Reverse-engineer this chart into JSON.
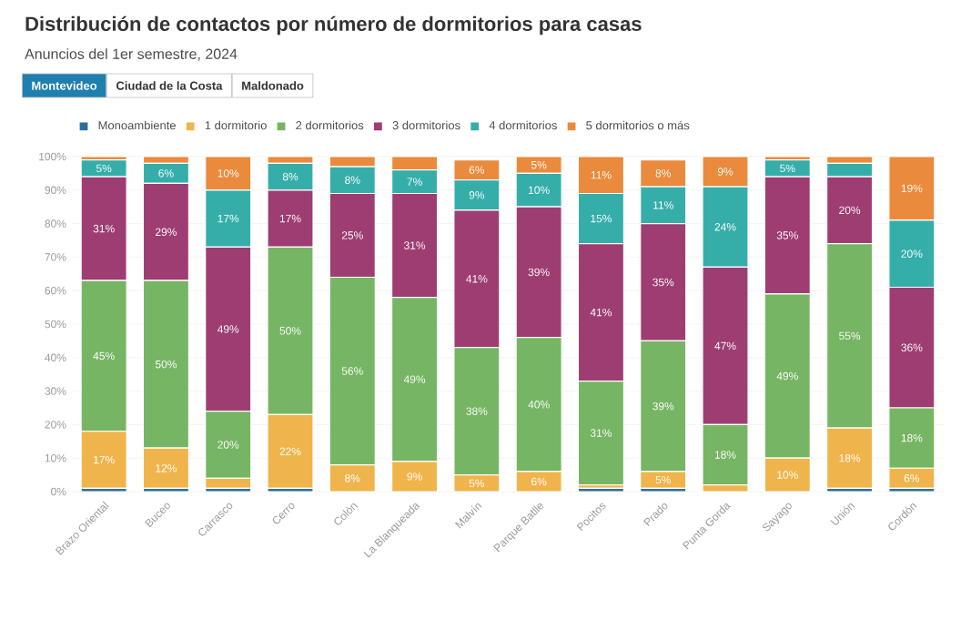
{
  "chart_data": {
    "type": "bar",
    "stacked": true,
    "title": "Distribución de contactos por número de dormitorios para casas",
    "subtitle": "Anuncios del 1er semestre, 2024",
    "annotations": [
      "Montevideo",
      "Ciudad de la Costa",
      "Maldonado"
    ],
    "categories": [
      "Brazo Oriental",
      "Buceo",
      "Carrasco",
      "Cerro",
      "Colón",
      "La Blanqueada",
      "Malvín",
      "Parque Batlle",
      "Pocitos",
      "Prado",
      "Punta Gorda",
      "Sayago",
      "Unión",
      "Cordón"
    ],
    "series": [
      {
        "name": "Monoambiente",
        "color": "#2a6f9b",
        "values": [
          1,
          1,
          1,
          1,
          0,
          0,
          0,
          0,
          1,
          1,
          0,
          0,
          1,
          1
        ],
        "value_labels": [
          null,
          null,
          null,
          null,
          null,
          null,
          null,
          null,
          null,
          null,
          null,
          null,
          null,
          null
        ]
      },
      {
        "name": "1 dormitorio",
        "color": "#f0b44c",
        "values": [
          17,
          12,
          3,
          22,
          8,
          9,
          5,
          6,
          1,
          5,
          2,
          10,
          18,
          6
        ],
        "value_labels": [
          "17%",
          "12%",
          null,
          "22%",
          "8%",
          "9%",
          "5%",
          "6%",
          null,
          "5%",
          null,
          "10%",
          "18%",
          "6%"
        ]
      },
      {
        "name": "2 dormitorios",
        "color": "#76b563",
        "values": [
          45,
          50,
          20,
          50,
          56,
          49,
          38,
          40,
          31,
          39,
          18,
          49,
          55,
          18
        ],
        "value_labels": [
          "45%",
          "50%",
          "20%",
          "50%",
          "56%",
          "49%",
          "38%",
          "40%",
          "31%",
          "39%",
          "18%",
          "49%",
          "55%",
          "18%"
        ]
      },
      {
        "name": "3 dormitorios",
        "color": "#9e3d72",
        "values": [
          31,
          29,
          49,
          17,
          25,
          31,
          41,
          39,
          41,
          35,
          47,
          35,
          20,
          36
        ],
        "value_labels": [
          "31%",
          "29%",
          "49%",
          "17%",
          "25%",
          "31%",
          "41%",
          "39%",
          "41%",
          "35%",
          "47%",
          "35%",
          "20%",
          "36%"
        ]
      },
      {
        "name": "4 dormitorios",
        "color": "#35aeaa",
        "values": [
          5,
          6,
          17,
          8,
          8,
          7,
          9,
          10,
          15,
          11,
          24,
          5,
          4,
          20
        ],
        "value_labels": [
          "5%",
          "6%",
          "17%",
          "8%",
          "8%",
          "7%",
          "9%",
          "10%",
          "15%",
          "11%",
          "24%",
          "5%",
          null,
          "20%"
        ]
      },
      {
        "name": "5 dormitorios o más",
        "color": "#ea8a3c",
        "values": [
          1,
          2,
          10,
          2,
          3,
          4,
          6,
          5,
          11,
          8,
          9,
          1,
          2,
          19
        ],
        "value_labels": [
          null,
          null,
          "10%",
          null,
          null,
          null,
          "6%",
          "5%",
          "11%",
          "8%",
          "9%",
          null,
          null,
          "19%"
        ]
      }
    ],
    "ylim": [
      0,
      100
    ],
    "yticks": [
      {
        "value": 0,
        "label": "0%"
      },
      {
        "value": 10,
        "label": "10%"
      },
      {
        "value": 20,
        "label": "20%"
      },
      {
        "value": 30,
        "label": "30%"
      },
      {
        "value": 40,
        "label": "40%"
      },
      {
        "value": 50,
        "label": "50%"
      },
      {
        "value": 60,
        "label": "60%"
      },
      {
        "value": 70,
        "label": "70%"
      },
      {
        "value": 80,
        "label": "80%"
      },
      {
        "value": 90,
        "label": "90%"
      },
      {
        "value": 100,
        "label": "100%"
      }
    ],
    "grid": "y",
    "legend": "top left"
  }
}
